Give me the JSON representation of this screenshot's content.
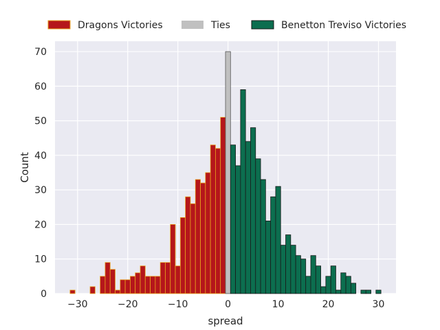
{
  "chart_data": {
    "type": "bar",
    "subtype": "histogram",
    "xlabel": "spread",
    "ylabel": "Count",
    "xlim": [
      -34.5,
      33.5
    ],
    "ylim": [
      0,
      73
    ],
    "xticks": [
      -30,
      -20,
      -10,
      0,
      10,
      20,
      30
    ],
    "yticks": [
      0,
      10,
      20,
      30,
      40,
      50,
      60,
      70
    ],
    "grid": true,
    "legend_position": "top",
    "series": [
      {
        "name": "Dragons Victories",
        "color": "#b5161b",
        "edge_color": "#e8a21c",
        "x": [
          -31,
          -27,
          -25,
          -24,
          -23,
          -22,
          -21,
          -20,
          -19,
          -18,
          -17,
          -16,
          -15,
          -14,
          -13,
          -12,
          -11,
          -10,
          -9,
          -8,
          -7,
          -6,
          -5,
          -4,
          -3,
          -2,
          -1
        ],
        "values": [
          1,
          2,
          5,
          9,
          7,
          1,
          4,
          4,
          5,
          6,
          8,
          5,
          5,
          5,
          9,
          9,
          20,
          8,
          22,
          28,
          26,
          33,
          32,
          35,
          43,
          42,
          51
        ]
      },
      {
        "name": "Ties",
        "color": "#c0c0c0",
        "edge_color": "#555555",
        "x": [
          0
        ],
        "values": [
          70
        ]
      },
      {
        "name": "Benetton Treviso Victories",
        "color": "#0c6e4f",
        "edge_color": "#1a1a1a",
        "x": [
          1,
          2,
          3,
          4,
          5,
          6,
          7,
          8,
          9,
          10,
          11,
          12,
          13,
          14,
          15,
          16,
          17,
          18,
          19,
          20,
          21,
          22,
          23,
          24,
          25,
          26,
          27,
          28,
          30
        ],
        "values": [
          43,
          37,
          59,
          44,
          48,
          39,
          33,
          21,
          28,
          31,
          14,
          17,
          14,
          11,
          10,
          5,
          11,
          8,
          2,
          5,
          8,
          1,
          6,
          5,
          3,
          0,
          1,
          1,
          1
        ]
      }
    ]
  }
}
